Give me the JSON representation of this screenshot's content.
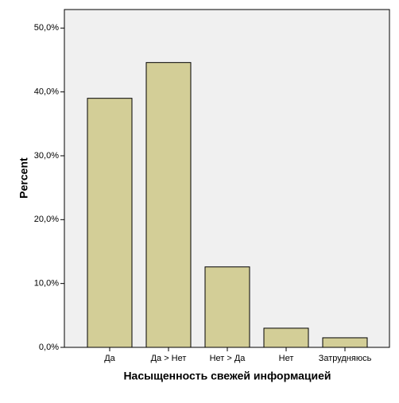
{
  "chart_data": {
    "type": "bar",
    "xlabel": "Насыщенность свежей информацией",
    "ylabel": "Percent",
    "categories": [
      "Да",
      "Да > Нет",
      "Нет > Да",
      "Нет",
      "Затрудняюсь"
    ],
    "values": [
      39.0,
      44.6,
      12.6,
      3.0,
      1.5
    ],
    "color": "#d3ce97",
    "ylim": [
      0,
      52.9
    ],
    "yticks": [
      {
        "value": 0,
        "label": "0,0%"
      },
      {
        "value": 10,
        "label": "10,0%"
      },
      {
        "value": 20,
        "label": "20,0%"
      },
      {
        "value": 30,
        "label": "30,0%"
      },
      {
        "value": 40,
        "label": "40,0%"
      },
      {
        "value": 50,
        "label": "50,0%"
      }
    ]
  }
}
